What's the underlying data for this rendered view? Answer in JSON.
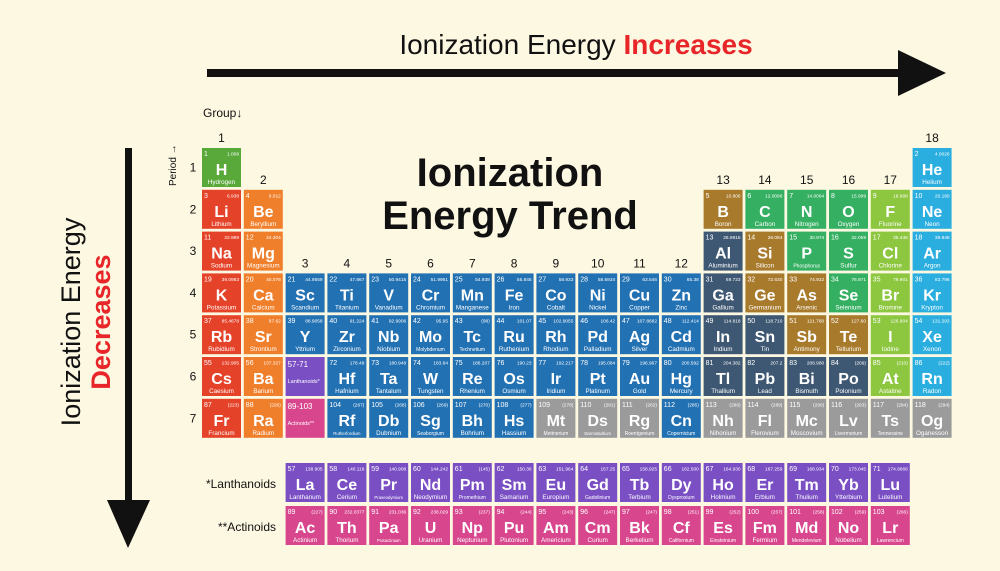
{
  "header": {
    "text": "Ionization Energy",
    "emphasis": "Increases"
  },
  "side": {
    "text": "Ionization Energy",
    "emphasis": "Decreases"
  },
  "title": [
    "Ionization",
    "Energy Trend"
  ],
  "group_label": "Group↓",
  "period_label": "Period →",
  "groups": [
    1,
    2,
    3,
    4,
    5,
    6,
    7,
    8,
    9,
    10,
    11,
    12,
    13,
    14,
    15,
    16,
    17,
    18
  ],
  "periods": [
    1,
    2,
    3,
    4,
    5,
    6,
    7
  ],
  "placeholders": [
    {
      "range": "57-71",
      "label": "Lanthanoids*",
      "color": "#7a4fc4"
    },
    {
      "range": "89-103",
      "label": "Actinoids**",
      "color": "#d8468d"
    }
  ],
  "series_labels": [
    "*Lanthanoids",
    "**Actinoids"
  ],
  "elements": [
    {
      "number": 1,
      "symbol": "H",
      "name": "Hydrogen",
      "mass": "1.008",
      "color": "#59a83a"
    },
    {
      "number": 2,
      "symbol": "He",
      "name": "Helium",
      "mass": "4.0026",
      "color": "#2aaee0"
    },
    {
      "number": 3,
      "symbol": "Li",
      "name": "Lithium",
      "mass": "6.938",
      "color": "#e5422a"
    },
    {
      "number": 4,
      "symbol": "Be",
      "name": "Beryllium",
      "mass": "9.012",
      "color": "#f07f2b"
    },
    {
      "number": 5,
      "symbol": "B",
      "name": "Boron",
      "mass": "10.806",
      "color": "#a87a2c"
    },
    {
      "number": 6,
      "symbol": "C",
      "name": "Carbon",
      "mass": "12.0096",
      "color": "#35b062"
    },
    {
      "number": 7,
      "symbol": "N",
      "name": "Nitrogen",
      "mass": "14.0064",
      "color": "#35b062"
    },
    {
      "number": 8,
      "symbol": "O",
      "name": "Oxygen",
      "mass": "15.999",
      "color": "#35b062"
    },
    {
      "number": 9,
      "symbol": "F",
      "name": "Fluorine",
      "mass": "18.998",
      "color": "#8dc63f"
    },
    {
      "number": 10,
      "symbol": "Ne",
      "name": "Neon",
      "mass": "20.180",
      "color": "#2aaee0"
    },
    {
      "number": 11,
      "symbol": "Na",
      "name": "Sodium",
      "mass": "22.989",
      "color": "#e5422a"
    },
    {
      "number": 12,
      "symbol": "Mg",
      "name": "Magnesium",
      "mass": "24.304",
      "color": "#f07f2b"
    },
    {
      "number": 13,
      "symbol": "Al",
      "name": "Aluminium",
      "mass": "26.9815",
      "color": "#3e5873"
    },
    {
      "number": 14,
      "symbol": "Si",
      "name": "Silicon",
      "mass": "28.084",
      "color": "#a87a2c"
    },
    {
      "number": 15,
      "symbol": "P",
      "name": "Phosphorus",
      "mass": "30.974",
      "color": "#35b062"
    },
    {
      "number": 16,
      "symbol": "S",
      "name": "Sulfur",
      "mass": "32.059",
      "color": "#35b062"
    },
    {
      "number": 17,
      "symbol": "Cl",
      "name": "Chlorine",
      "mass": "35.446",
      "color": "#8dc63f"
    },
    {
      "number": 18,
      "symbol": "Ar",
      "name": "Argon",
      "mass": "39.948",
      "color": "#2aaee0"
    },
    {
      "number": 19,
      "symbol": "K",
      "name": "Potassium",
      "mass": "39.0983",
      "color": "#e5422a"
    },
    {
      "number": 20,
      "symbol": "Ca",
      "name": "Calcium",
      "mass": "40.078",
      "color": "#f07f2b"
    },
    {
      "number": 21,
      "symbol": "Sc",
      "name": "Scandium",
      "mass": "44.9559",
      "color": "#2271b3"
    },
    {
      "number": 22,
      "symbol": "Ti",
      "name": "Titanium",
      "mass": "47.867",
      "color": "#2271b3"
    },
    {
      "number": 23,
      "symbol": "V",
      "name": "Vanadium",
      "mass": "50.9415",
      "color": "#2271b3"
    },
    {
      "number": 24,
      "symbol": "Cr",
      "name": "Chromium",
      "mass": "51.9961",
      "color": "#2271b3"
    },
    {
      "number": 25,
      "symbol": "Mn",
      "name": "Manganese",
      "mass": "54.938",
      "color": "#2271b3"
    },
    {
      "number": 26,
      "symbol": "Fe",
      "name": "Iron",
      "mass": "55.845",
      "color": "#2271b3"
    },
    {
      "number": 27,
      "symbol": "Co",
      "name": "Cobalt",
      "mass": "58.933",
      "color": "#2271b3"
    },
    {
      "number": 28,
      "symbol": "Ni",
      "name": "Nickel",
      "mass": "58.6934",
      "color": "#2271b3"
    },
    {
      "number": 29,
      "symbol": "Cu",
      "name": "Copper",
      "mass": "63.546",
      "color": "#2271b3"
    },
    {
      "number": 30,
      "symbol": "Zn",
      "name": "Zinc",
      "mass": "65.38",
      "color": "#2271b3"
    },
    {
      "number": 31,
      "symbol": "Ga",
      "name": "Gallium",
      "mass": "69.723",
      "color": "#3e5873"
    },
    {
      "number": 32,
      "symbol": "Ge",
      "name": "Germanium",
      "mass": "72.630",
      "color": "#a87a2c"
    },
    {
      "number": 33,
      "symbol": "As",
      "name": "Arsenic",
      "mass": "74.922",
      "color": "#a87a2c"
    },
    {
      "number": 34,
      "symbol": "Se",
      "name": "Selenium",
      "mass": "78.971",
      "color": "#35b062"
    },
    {
      "number": 35,
      "symbol": "Br",
      "name": "Bromine",
      "mass": "79.901",
      "color": "#8dc63f"
    },
    {
      "number": 36,
      "symbol": "Kr",
      "name": "Krypton",
      "mass": "83.798",
      "color": "#2aaee0"
    },
    {
      "number": 37,
      "symbol": "Rb",
      "name": "Rubidium",
      "mass": "85.4678",
      "color": "#e5422a"
    },
    {
      "number": 38,
      "symbol": "Sr",
      "name": "Strontium",
      "mass": "87.62",
      "color": "#f07f2b"
    },
    {
      "number": 39,
      "symbol": "Y",
      "name": "Yttrium",
      "mass": "88.9058",
      "color": "#2271b3"
    },
    {
      "number": 40,
      "symbol": "Zr",
      "name": "Zirconium",
      "mass": "91.224",
      "color": "#2271b3"
    },
    {
      "number": 41,
      "symbol": "Nb",
      "name": "Niobium",
      "mass": "92.9906",
      "color": "#2271b3"
    },
    {
      "number": 42,
      "symbol": "Mo",
      "name": "Molybdenum",
      "mass": "95.95",
      "color": "#2271b3"
    },
    {
      "number": 43,
      "symbol": "Tc",
      "name": "Technetium",
      "mass": "(98)",
      "color": "#2271b3"
    },
    {
      "number": 44,
      "symbol": "Ru",
      "name": "Ruthenium",
      "mass": "101.07",
      "color": "#2271b3"
    },
    {
      "number": 45,
      "symbol": "Rh",
      "name": "Rhodium",
      "mass": "102.9055",
      "color": "#2271b3"
    },
    {
      "number": 46,
      "symbol": "Pd",
      "name": "Palladium",
      "mass": "106.42",
      "color": "#2271b3"
    },
    {
      "number": 47,
      "symbol": "Ag",
      "name": "Silver",
      "mass": "107.8682",
      "color": "#2271b3"
    },
    {
      "number": 48,
      "symbol": "Cd",
      "name": "Cadmium",
      "mass": "112.414",
      "color": "#2271b3"
    },
    {
      "number": 49,
      "symbol": "In",
      "name": "Indium",
      "mass": "114.818",
      "color": "#3e5873"
    },
    {
      "number": 50,
      "symbol": "Sn",
      "name": "Tin",
      "mass": "118.710",
      "color": "#3e5873"
    },
    {
      "number": 51,
      "symbol": "Sb",
      "name": "Antimony",
      "mass": "121.760",
      "color": "#a87a2c"
    },
    {
      "number": 52,
      "symbol": "Te",
      "name": "Tellurium",
      "mass": "127.60",
      "color": "#a87a2c"
    },
    {
      "number": 53,
      "symbol": "I",
      "name": "Iodine",
      "mass": "126.904",
      "color": "#8dc63f"
    },
    {
      "number": 54,
      "symbol": "Xe",
      "name": "Xenon",
      "mass": "131.293",
      "color": "#2aaee0"
    },
    {
      "number": 55,
      "symbol": "Cs",
      "name": "Caesium",
      "mass": "132.905",
      "color": "#e5422a"
    },
    {
      "number": 56,
      "symbol": "Ba",
      "name": "Barium",
      "mass": "137.327",
      "color": "#f07f2b"
    },
    {
      "number": 57,
      "symbol": "La",
      "name": "Lanthanum",
      "mass": "138.905",
      "color": "#7a4fc4"
    },
    {
      "number": 58,
      "symbol": "Ce",
      "name": "Cerium",
      "mass": "140.116",
      "color": "#7a4fc4"
    },
    {
      "number": 59,
      "symbol": "Pr",
      "name": "Praseodymium",
      "mass": "140.908",
      "color": "#7a4fc4"
    },
    {
      "number": 60,
      "symbol": "Nd",
      "name": "Neodymium",
      "mass": "144.242",
      "color": "#7a4fc4"
    },
    {
      "number": 61,
      "symbol": "Pm",
      "name": "Promethium",
      "mass": "(145)",
      "color": "#7a4fc4"
    },
    {
      "number": 62,
      "symbol": "Sm",
      "name": "Samarium",
      "mass": "150.36",
      "color": "#7a4fc4"
    },
    {
      "number": 63,
      "symbol": "Eu",
      "name": "Europium",
      "mass": "151.964",
      "color": "#7a4fc4"
    },
    {
      "number": 64,
      "symbol": "Gd",
      "name": "Gadolinium",
      "mass": "157.25",
      "color": "#7a4fc4"
    },
    {
      "number": 65,
      "symbol": "Tb",
      "name": "Terbium",
      "mass": "158.925",
      "color": "#7a4fc4"
    },
    {
      "number": 66,
      "symbol": "Dy",
      "name": "Dysprosium",
      "mass": "162.500",
      "color": "#7a4fc4"
    },
    {
      "number": 67,
      "symbol": "Ho",
      "name": "Holmium",
      "mass": "164.930",
      "color": "#7a4fc4"
    },
    {
      "number": 68,
      "symbol": "Er",
      "name": "Erbium",
      "mass": "167.259",
      "color": "#7a4fc4"
    },
    {
      "number": 69,
      "symbol": "Tm",
      "name": "Thulium",
      "mass": "168.934",
      "color": "#7a4fc4"
    },
    {
      "number": 70,
      "symbol": "Yb",
      "name": "Ytterbium",
      "mass": "173.045",
      "color": "#7a4fc4"
    },
    {
      "number": 71,
      "symbol": "Lu",
      "name": "Lutetium",
      "mass": "174.9668",
      "color": "#7a4fc4"
    },
    {
      "number": 72,
      "symbol": "Hf",
      "name": "Hafnium",
      "mass": "178.49",
      "color": "#2271b3"
    },
    {
      "number": 73,
      "symbol": "Ta",
      "name": "Tantalum",
      "mass": "180.948",
      "color": "#2271b3"
    },
    {
      "number": 74,
      "symbol": "W",
      "name": "Tungsten",
      "mass": "183.84",
      "color": "#2271b3"
    },
    {
      "number": 75,
      "symbol": "Re",
      "name": "Rhenium",
      "mass": "186.207",
      "color": "#2271b3"
    },
    {
      "number": 76,
      "symbol": "Os",
      "name": "Osmium",
      "mass": "190.23",
      "color": "#2271b3"
    },
    {
      "number": 77,
      "symbol": "Ir",
      "name": "Iridium",
      "mass": "192.217",
      "color": "#2271b3"
    },
    {
      "number": 78,
      "symbol": "Pt",
      "name": "Platinum",
      "mass": "195.084",
      "color": "#2271b3"
    },
    {
      "number": 79,
      "symbol": "Au",
      "name": "Gold",
      "mass": "196.967",
      "color": "#2271b3"
    },
    {
      "number": 80,
      "symbol": "Hg",
      "name": "Mercury",
      "mass": "200.592",
      "color": "#2271b3"
    },
    {
      "number": 81,
      "symbol": "Tl",
      "name": "Thallium",
      "mass": "204.382",
      "color": "#3e5873"
    },
    {
      "number": 82,
      "symbol": "Pb",
      "name": "Lead",
      "mass": "207.2",
      "color": "#3e5873"
    },
    {
      "number": 83,
      "symbol": "Bi",
      "name": "Bismuth",
      "mass": "208.980",
      "color": "#3e5873"
    },
    {
      "number": 84,
      "symbol": "Po",
      "name": "Polonium",
      "mass": "(209)",
      "color": "#3e5873"
    },
    {
      "number": 85,
      "symbol": "At",
      "name": "Astatine",
      "mass": "(210)",
      "color": "#8dc63f"
    },
    {
      "number": 86,
      "symbol": "Rn",
      "name": "Radon",
      "mass": "(222)",
      "color": "#2aaee0"
    },
    {
      "number": 87,
      "symbol": "Fr",
      "name": "Francium",
      "mass": "(223)",
      "color": "#e5422a"
    },
    {
      "number": 88,
      "symbol": "Ra",
      "name": "Radium",
      "mass": "(226)",
      "color": "#f07f2b"
    },
    {
      "number": 89,
      "symbol": "Ac",
      "name": "Actinium",
      "mass": "(227)",
      "color": "#d8468d"
    },
    {
      "number": 90,
      "symbol": "Th",
      "name": "Thorium",
      "mass": "232.0377",
      "color": "#d8468d"
    },
    {
      "number": 91,
      "symbol": "Pa",
      "name": "Protactinium",
      "mass": "231.036",
      "color": "#d8468d"
    },
    {
      "number": 92,
      "symbol": "U",
      "name": "Uranium",
      "mass": "238.029",
      "color": "#d8468d"
    },
    {
      "number": 93,
      "symbol": "Np",
      "name": "Neptunium",
      "mass": "(237)",
      "color": "#d8468d"
    },
    {
      "number": 94,
      "symbol": "Pu",
      "name": "Plutonium",
      "mass": "(244)",
      "color": "#d8468d"
    },
    {
      "number": 95,
      "symbol": "Am",
      "name": "Americium",
      "mass": "(243)",
      "color": "#d8468d"
    },
    {
      "number": 96,
      "symbol": "Cm",
      "name": "Curium",
      "mass": "(247)",
      "color": "#d8468d"
    },
    {
      "number": 97,
      "symbol": "Bk",
      "name": "Berkelium",
      "mass": "(247)",
      "color": "#d8468d"
    },
    {
      "number": 98,
      "symbol": "Cf",
      "name": "Californium",
      "mass": "(251)",
      "color": "#d8468d"
    },
    {
      "number": 99,
      "symbol": "Es",
      "name": "Einsteinium",
      "mass": "(252)",
      "color": "#d8468d"
    },
    {
      "number": 100,
      "symbol": "Fm",
      "name": "Fermium",
      "mass": "(257)",
      "color": "#d8468d"
    },
    {
      "number": 101,
      "symbol": "Md",
      "name": "Mendelevium",
      "mass": "(258)",
      "color": "#d8468d"
    },
    {
      "number": 102,
      "symbol": "No",
      "name": "Nobelium",
      "mass": "(259)",
      "color": "#d8468d"
    },
    {
      "number": 103,
      "symbol": "Lr",
      "name": "Lawrencium",
      "mass": "(266)",
      "color": "#d8468d"
    },
    {
      "number": 104,
      "symbol": "Rf",
      "name": "Rutherfordium",
      "mass": "(267)",
      "color": "#2271b3"
    },
    {
      "number": 105,
      "symbol": "Db",
      "name": "Dubnium",
      "mass": "(268)",
      "color": "#2271b3"
    },
    {
      "number": 106,
      "symbol": "Sg",
      "name": "Seaborgium",
      "mass": "(269)",
      "color": "#2271b3"
    },
    {
      "number": 107,
      "symbol": "Bh",
      "name": "Bohrium",
      "mass": "(270)",
      "color": "#2271b3"
    },
    {
      "number": 108,
      "symbol": "Hs",
      "name": "Hassium",
      "mass": "(277)",
      "color": "#2271b3"
    },
    {
      "number": 109,
      "symbol": "Mt",
      "name": "Meitnerium",
      "mass": "(278)",
      "color": "#9b9b9b"
    },
    {
      "number": 110,
      "symbol": "Ds",
      "name": "Darmstadtium",
      "mass": "(281)",
      "color": "#9b9b9b"
    },
    {
      "number": 111,
      "symbol": "Rg",
      "name": "Roentgenium",
      "mass": "(282)",
      "color": "#9b9b9b"
    },
    {
      "number": 112,
      "symbol": "Cn",
      "name": "Copernicium",
      "mass": "(285)",
      "color": "#2271b3"
    },
    {
      "number": 113,
      "symbol": "Nh",
      "name": "Nihonium",
      "mass": "(286)",
      "color": "#9b9b9b"
    },
    {
      "number": 114,
      "symbol": "Fl",
      "name": "Flerovium",
      "mass": "(289)",
      "color": "#9b9b9b"
    },
    {
      "number": 115,
      "symbol": "Mc",
      "name": "Moscovium",
      "mass": "(290)",
      "color": "#9b9b9b"
    },
    {
      "number": 116,
      "symbol": "Lv",
      "name": "Livermorium",
      "mass": "(293)",
      "color": "#9b9b9b"
    },
    {
      "number": 117,
      "symbol": "Ts",
      "name": "Tennessine",
      "mass": "(294)",
      "color": "#9b9b9b"
    },
    {
      "number": 118,
      "symbol": "Og",
      "name": "Oganesson",
      "mass": "(294)",
      "color": "#9b9b9b"
    }
  ]
}
